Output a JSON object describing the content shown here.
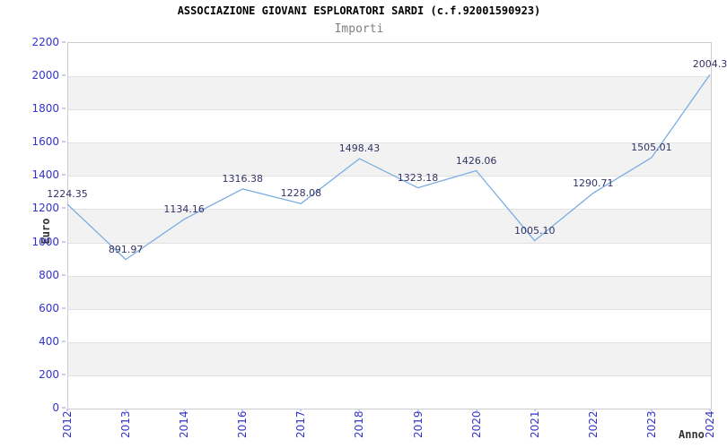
{
  "header": {
    "title": "ASSOCIAZIONE GIOVANI ESPLORATORI SARDI (c.f.92001590923)",
    "subtitle": "Importi"
  },
  "chart_data": {
    "type": "line",
    "title": "ASSOCIAZIONE GIOVANI ESPLORATORI SARDI (c.f.92001590923)",
    "subtitle": "Importi",
    "xlabel": "Anno",
    "ylabel": "Euro",
    "categories": [
      "2012",
      "2013",
      "2014",
      "2016",
      "2017",
      "2018",
      "2019",
      "2020",
      "2021",
      "2022",
      "2023",
      "2024"
    ],
    "values": [
      1224.35,
      891.97,
      1134.16,
      1316.38,
      1228.08,
      1498.43,
      1323.18,
      1426.06,
      1005.1,
      1290.71,
      1505.01,
      2004.3
    ],
    "point_labels": [
      "1224.35",
      "891.97",
      "1134.16",
      "1316.38",
      "1228.08",
      "1498.43",
      "1323.18",
      "1426.06",
      "1005.10",
      "1290.71",
      "1505.01",
      "2004.3"
    ],
    "ylim": [
      0,
      2200
    ],
    "ytick_step": 200,
    "grid": "alternating-horizontal-bands",
    "legend_position": "none"
  },
  "colors": {
    "axis_tick_label": "#3333cc",
    "point_label": "#333366",
    "line": "#7aade2",
    "band": "#f2f2f2",
    "gridline": "#e2e2e2",
    "plot_border": "#cccccc",
    "title": "#000000",
    "subtitle": "#808080",
    "axis_title": "#333333",
    "tick_mark": "#ccccf2",
    "background": "#ffffff"
  }
}
